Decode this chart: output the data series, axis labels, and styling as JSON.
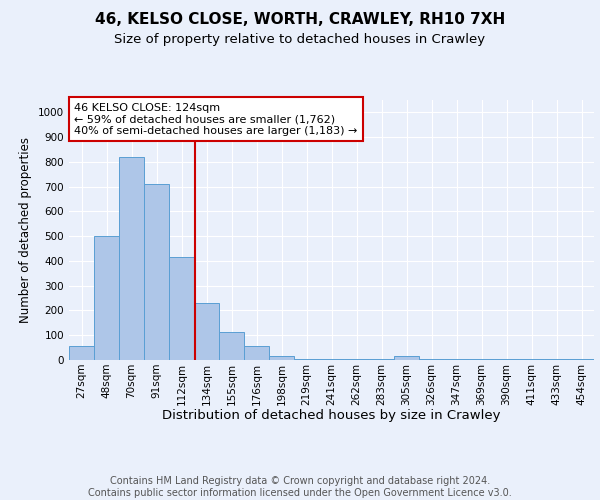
{
  "title_line1": "46, KELSO CLOSE, WORTH, CRAWLEY, RH10 7XH",
  "title_line2": "Size of property relative to detached houses in Crawley",
  "xlabel": "Distribution of detached houses by size in Crawley",
  "ylabel": "Number of detached properties",
  "bin_labels": [
    "27sqm",
    "48sqm",
    "70sqm",
    "91sqm",
    "112sqm",
    "134sqm",
    "155sqm",
    "176sqm",
    "198sqm",
    "219sqm",
    "241sqm",
    "262sqm",
    "283sqm",
    "305sqm",
    "326sqm",
    "347sqm",
    "369sqm",
    "390sqm",
    "411sqm",
    "433sqm",
    "454sqm"
  ],
  "bar_values": [
    55,
    500,
    820,
    710,
    415,
    230,
    115,
    55,
    15,
    5,
    5,
    5,
    5,
    15,
    5,
    5,
    5,
    5,
    5,
    5,
    5
  ],
  "bar_color": "#aec6e8",
  "bar_edge_color": "#5a9fd4",
  "vline_color": "#cc0000",
  "annotation_text": "46 KELSO CLOSE: 124sqm\n← 59% of detached houses are smaller (1,762)\n40% of semi-detached houses are larger (1,183) →",
  "annotation_box_color": "#ffffff",
  "annotation_box_edge": "#cc0000",
  "ylim": [
    0,
    1050
  ],
  "yticks": [
    0,
    100,
    200,
    300,
    400,
    500,
    600,
    700,
    800,
    900,
    1000
  ],
  "background_color": "#eaf0fb",
  "plot_bg_color": "#eaf0fb",
  "footer_text": "Contains HM Land Registry data © Crown copyright and database right 2024.\nContains public sector information licensed under the Open Government Licence v3.0.",
  "title_fontsize": 11,
  "subtitle_fontsize": 9.5,
  "xlabel_fontsize": 9.5,
  "ylabel_fontsize": 8.5,
  "tick_fontsize": 7.5,
  "footer_fontsize": 7
}
